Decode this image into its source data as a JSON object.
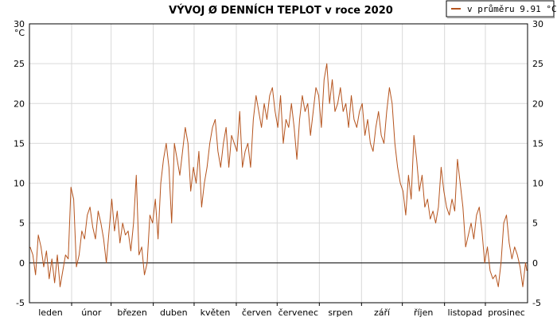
{
  "chart_data": {
    "type": "line",
    "title": "VÝVOJ Ø DENNÍCH TEPLOT v roce 2020",
    "ylabel_unit": "°C",
    "ylim": [
      -5,
      30
    ],
    "yticks": [
      -5,
      0,
      5,
      10,
      15,
      20,
      25,
      30
    ],
    "categories": [
      "leden",
      "únor",
      "březen",
      "duben",
      "květen",
      "červen",
      "červenec",
      "srpen",
      "září",
      "říjen",
      "listopad",
      "prosinec"
    ],
    "grid": true,
    "legend": {
      "position": "top-right",
      "label": "v průměru 9.91 °C"
    },
    "series": [
      {
        "name": "v průměru 9.91 °C",
        "color": "#b5541e",
        "x_unit": "day of year",
        "points": [
          [
            1,
            2
          ],
          [
            3,
            1
          ],
          [
            5,
            -1.5
          ],
          [
            7,
            3.5
          ],
          [
            9,
            2
          ],
          [
            11,
            -0.5
          ],
          [
            13,
            1.5
          ],
          [
            15,
            -2
          ],
          [
            17,
            0.5
          ],
          [
            19,
            -2.5
          ],
          [
            21,
            1
          ],
          [
            23,
            -3
          ],
          [
            25,
            -1
          ],
          [
            27,
            1
          ],
          [
            29,
            0.5
          ],
          [
            31,
            9.5
          ],
          [
            33,
            8
          ],
          [
            35,
            -0.5
          ],
          [
            37,
            1
          ],
          [
            39,
            4
          ],
          [
            41,
            3
          ],
          [
            43,
            6
          ],
          [
            45,
            7
          ],
          [
            47,
            4.5
          ],
          [
            49,
            3
          ],
          [
            51,
            6.5
          ],
          [
            53,
            5
          ],
          [
            55,
            3
          ],
          [
            57,
            0
          ],
          [
            59,
            4
          ],
          [
            61,
            8
          ],
          [
            63,
            4
          ],
          [
            65,
            6.5
          ],
          [
            67,
            2.5
          ],
          [
            69,
            5
          ],
          [
            71,
            3.5
          ],
          [
            73,
            4
          ],
          [
            75,
            1.5
          ],
          [
            77,
            5
          ],
          [
            79,
            11
          ],
          [
            81,
            1
          ],
          [
            83,
            2
          ],
          [
            85,
            -1.5
          ],
          [
            87,
            0
          ],
          [
            89,
            6
          ],
          [
            91,
            5
          ],
          [
            93,
            8
          ],
          [
            95,
            3
          ],
          [
            97,
            10
          ],
          [
            99,
            13
          ],
          [
            101,
            15
          ],
          [
            103,
            12
          ],
          [
            105,
            5
          ],
          [
            107,
            15
          ],
          [
            109,
            13
          ],
          [
            111,
            11
          ],
          [
            113,
            14
          ],
          [
            115,
            17
          ],
          [
            117,
            15
          ],
          [
            119,
            9
          ],
          [
            121,
            12
          ],
          [
            123,
            10
          ],
          [
            125,
            14
          ],
          [
            127,
            7
          ],
          [
            129,
            10
          ],
          [
            131,
            12
          ],
          [
            133,
            15
          ],
          [
            135,
            17
          ],
          [
            137,
            18
          ],
          [
            139,
            14
          ],
          [
            141,
            12
          ],
          [
            143,
            15
          ],
          [
            145,
            17
          ],
          [
            147,
            12
          ],
          [
            149,
            16
          ],
          [
            151,
            15
          ],
          [
            153,
            14
          ],
          [
            155,
            19
          ],
          [
            157,
            12
          ],
          [
            159,
            14
          ],
          [
            161,
            15
          ],
          [
            163,
            12
          ],
          [
            165,
            18
          ],
          [
            167,
            21
          ],
          [
            169,
            19
          ],
          [
            171,
            17
          ],
          [
            173,
            20
          ],
          [
            175,
            18
          ],
          [
            177,
            21
          ],
          [
            179,
            22
          ],
          [
            181,
            19
          ],
          [
            183,
            17
          ],
          [
            185,
            21
          ],
          [
            187,
            15
          ],
          [
            189,
            18
          ],
          [
            191,
            17
          ],
          [
            193,
            20
          ],
          [
            195,
            17
          ],
          [
            197,
            13
          ],
          [
            199,
            18
          ],
          [
            201,
            21
          ],
          [
            203,
            19
          ],
          [
            205,
            20
          ],
          [
            207,
            16
          ],
          [
            209,
            19
          ],
          [
            211,
            22
          ],
          [
            213,
            21
          ],
          [
            215,
            17
          ],
          [
            217,
            23
          ],
          [
            219,
            25
          ],
          [
            221,
            20
          ],
          [
            223,
            23
          ],
          [
            225,
            19
          ],
          [
            227,
            20
          ],
          [
            229,
            22
          ],
          [
            231,
            19
          ],
          [
            233,
            20
          ],
          [
            235,
            17
          ],
          [
            237,
            21
          ],
          [
            239,
            18
          ],
          [
            241,
            17
          ],
          [
            243,
            19
          ],
          [
            245,
            20
          ],
          [
            247,
            16
          ],
          [
            249,
            18
          ],
          [
            251,
            15
          ],
          [
            253,
            14
          ],
          [
            255,
            17
          ],
          [
            257,
            19
          ],
          [
            259,
            16
          ],
          [
            261,
            15
          ],
          [
            263,
            19
          ],
          [
            265,
            22
          ],
          [
            267,
            20
          ],
          [
            269,
            15
          ],
          [
            271,
            12
          ],
          [
            273,
            10
          ],
          [
            275,
            9
          ],
          [
            277,
            6
          ],
          [
            279,
            11
          ],
          [
            281,
            8
          ],
          [
            283,
            16
          ],
          [
            285,
            13
          ],
          [
            287,
            9
          ],
          [
            289,
            11
          ],
          [
            291,
            7
          ],
          [
            293,
            8
          ],
          [
            295,
            5.5
          ],
          [
            297,
            6.5
          ],
          [
            299,
            5
          ],
          [
            301,
            7
          ],
          [
            303,
            12
          ],
          [
            305,
            9
          ],
          [
            307,
            7
          ],
          [
            309,
            6
          ],
          [
            311,
            8
          ],
          [
            313,
            6.5
          ],
          [
            315,
            13
          ],
          [
            317,
            10
          ],
          [
            319,
            7
          ],
          [
            321,
            2
          ],
          [
            323,
            3.5
          ],
          [
            325,
            5
          ],
          [
            327,
            3
          ],
          [
            329,
            6
          ],
          [
            331,
            7
          ],
          [
            333,
            4
          ],
          [
            335,
            0
          ],
          [
            337,
            2
          ],
          [
            339,
            -1
          ],
          [
            341,
            -2
          ],
          [
            343,
            -1.5
          ],
          [
            345,
            -3
          ],
          [
            347,
            0
          ],
          [
            349,
            5
          ],
          [
            351,
            6
          ],
          [
            353,
            2.5
          ],
          [
            355,
            0.5
          ],
          [
            357,
            2
          ],
          [
            359,
            1
          ],
          [
            361,
            -0.5
          ],
          [
            363,
            -3
          ],
          [
            365,
            0
          ],
          [
            366,
            -1
          ]
        ]
      }
    ]
  }
}
